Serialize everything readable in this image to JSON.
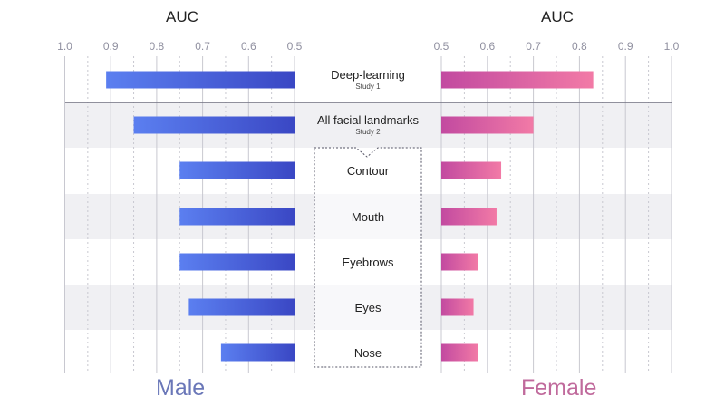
{
  "chart_data": [
    {
      "panel": "left",
      "type": "bar",
      "orientation": "horizontal",
      "xlabel": "AUC",
      "xlim": [
        1.0,
        0.5
      ],
      "ticks": [
        "1.0",
        "0.9",
        "0.8",
        "0.7",
        "0.6",
        "0.5"
      ],
      "group_label": "Male",
      "categories": [
        "Deep-learning",
        "All facial landmarks",
        "Contour",
        "Mouth",
        "Eyebrows",
        "Eyes",
        "Nose"
      ],
      "values": [
        0.91,
        0.85,
        0.75,
        0.75,
        0.75,
        0.73,
        0.66
      ],
      "color_start": "#5b7ff0",
      "color_end": "#3a47c4"
    },
    {
      "panel": "right",
      "type": "bar",
      "orientation": "horizontal",
      "xlabel": "AUC",
      "xlim": [
        0.5,
        1.0
      ],
      "ticks": [
        "0.5",
        "0.6",
        "0.7",
        "0.8",
        "0.9",
        "1.0"
      ],
      "group_label": "Female",
      "categories": [
        "Deep-learning",
        "All facial landmarks",
        "Contour",
        "Mouth",
        "Eyebrows",
        "Eyes",
        "Nose"
      ],
      "values": [
        0.83,
        0.7,
        0.63,
        0.62,
        0.58,
        0.57,
        0.58
      ],
      "color_start": "#c24aa0",
      "color_end": "#f27aa6"
    }
  ],
  "center_labels": [
    {
      "label": "Deep-learning",
      "sublabel": "Study 1"
    },
    {
      "label": "All facial landmarks",
      "sublabel": "Study 2"
    },
    {
      "label": "Contour",
      "sublabel": ""
    },
    {
      "label": "Mouth",
      "sublabel": ""
    },
    {
      "label": "Eyebrows",
      "sublabel": ""
    },
    {
      "label": "Eyes",
      "sublabel": ""
    },
    {
      "label": "Nose",
      "sublabel": ""
    }
  ],
  "colors": {
    "grid": "#c8c8d0",
    "row_band": "#f0f0f3",
    "divider": "#707080",
    "male_label": "#6a77b8",
    "female_label": "#c06a9c"
  }
}
